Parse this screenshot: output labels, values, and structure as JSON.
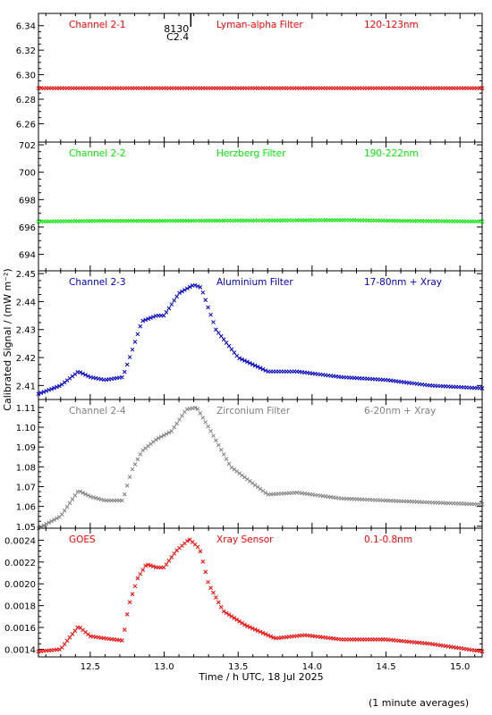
{
  "footnote": "(1 minute averages)",
  "chart_data": {
    "type": "scatter",
    "xlabel": "Time / h UTC, 18 Jul 2025",
    "ylabel": "Calibrated Signal / (mW m⁻²)",
    "xlim": [
      12.15,
      15.15
    ],
    "xticks": [
      "12.5",
      "13.0",
      "13.5",
      "14.0",
      "14.5",
      "15.0"
    ],
    "flare_marker": {
      "x": 13.18,
      "labels": [
        "8130",
        "C2.4"
      ]
    },
    "panels": [
      {
        "name": "Channel 2-1",
        "filter": "Lyman-alpha Filter",
        "band": "120-123nm",
        "color": "#ff0000",
        "ylim": [
          6.245,
          6.35
        ],
        "yticks": [
          "6.26",
          "6.28",
          "6.30",
          "6.32",
          "6.34"
        ],
        "series": {
          "x": [
            12.15,
            15.15
          ],
          "y": [
            6.289,
            6.289
          ]
        }
      },
      {
        "name": "Channel 2-2",
        "filter": "Herzberg Filter",
        "band": "190-222nm",
        "color": "#00ee00",
        "ylim": [
          692.8,
          702.2
        ],
        "yticks": [
          "694",
          "696",
          "698",
          "700",
          "702"
        ],
        "series": {
          "x": [
            12.15,
            12.6,
            13.0,
            14.25,
            14.6,
            15.15
          ],
          "y": [
            696.4,
            696.45,
            696.45,
            696.5,
            696.45,
            696.4
          ]
        }
      },
      {
        "name": "Channel 2-3",
        "filter": "Aluminium Filter",
        "band": "17-80nm + Xray",
        "color": "#0000cc",
        "ylim": [
          2.405,
          2.451
        ],
        "yticks": [
          "2.41",
          "2.42",
          "2.43",
          "2.44",
          "2.45"
        ],
        "series": {
          "x": [
            12.15,
            12.3,
            12.42,
            12.5,
            12.6,
            12.72,
            12.78,
            12.85,
            12.95,
            13.0,
            13.1,
            13.2,
            13.25,
            13.35,
            13.5,
            13.7,
            13.9,
            14.2,
            14.5,
            14.8,
            15.15
          ],
          "y": [
            2.407,
            2.41,
            2.415,
            2.413,
            2.412,
            2.413,
            2.422,
            2.433,
            2.435,
            2.435,
            2.443,
            2.446,
            2.445,
            2.43,
            2.42,
            2.415,
            2.415,
            2.413,
            2.412,
            2.41,
            2.409
          ]
        }
      },
      {
        "name": "Channel 2-4",
        "filter": "Zirconium Filter",
        "band": "6-20nm + Xray",
        "color": "#808080",
        "ylim": [
          1.049,
          1.114
        ],
        "yticks": [
          "1.05",
          "1.06",
          "1.07",
          "1.08",
          "1.09",
          "1.10",
          "1.11"
        ],
        "series": {
          "x": [
            12.15,
            12.3,
            12.42,
            12.5,
            12.6,
            12.72,
            12.78,
            12.85,
            12.95,
            13.05,
            13.15,
            13.22,
            13.3,
            13.45,
            13.7,
            13.9,
            14.2,
            14.5,
            14.8,
            15.15
          ],
          "y": [
            1.049,
            1.055,
            1.068,
            1.065,
            1.063,
            1.063,
            1.078,
            1.088,
            1.094,
            1.098,
            1.109,
            1.11,
            1.1,
            1.08,
            1.066,
            1.067,
            1.064,
            1.063,
            1.062,
            1.061
          ]
        }
      },
      {
        "name": "GOES",
        "filter": "Xray Sensor",
        "band": "0.1-0.8nm",
        "color": "#ff0000",
        "ylim": [
          0.00133,
          0.00251
        ],
        "yticks": [
          "0.0014",
          "0.0016",
          "0.0018",
          "0.0020",
          "0.0022",
          "0.0024"
        ],
        "series": {
          "x": [
            12.15,
            12.3,
            12.42,
            12.5,
            12.6,
            12.72,
            12.76,
            12.82,
            12.88,
            12.95,
            13.0,
            13.08,
            13.17,
            13.24,
            13.3,
            13.4,
            13.55,
            13.75,
            13.95,
            14.2,
            14.5,
            14.8,
            15.15
          ],
          "y": [
            0.00138,
            0.0014,
            0.00161,
            0.00152,
            0.0015,
            0.00148,
            0.0018,
            0.00205,
            0.00218,
            0.00215,
            0.00215,
            0.0023,
            0.00241,
            0.00232,
            0.002,
            0.00175,
            0.00162,
            0.0015,
            0.00153,
            0.00149,
            0.00149,
            0.00145,
            0.00138
          ]
        }
      }
    ]
  }
}
